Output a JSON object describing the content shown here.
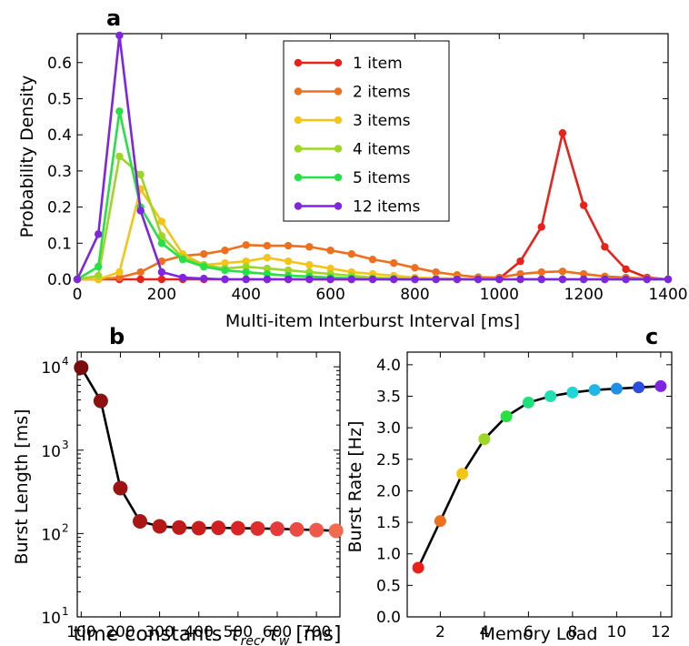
{
  "chart_data": [
    {
      "panel": "a",
      "type": "line",
      "xlabel": "Multi-item Interburst Interval [ms]",
      "ylabel": "Probability Density",
      "xlim": [
        0,
        1400
      ],
      "ylim": [
        0,
        0.68
      ],
      "xticks": [
        0,
        200,
        400,
        600,
        800,
        1000,
        1200,
        1400
      ],
      "yticks": [
        0.0,
        0.1,
        0.2,
        0.3,
        0.4,
        0.5,
        0.6
      ],
      "legend_position": "top-center",
      "x": [
        0,
        50,
        100,
        150,
        200,
        250,
        300,
        350,
        400,
        450,
        500,
        550,
        600,
        650,
        700,
        750,
        800,
        850,
        900,
        950,
        1000,
        1050,
        1100,
        1150,
        1200,
        1250,
        1300,
        1350,
        1400
      ],
      "series": [
        {
          "name": "1 item",
          "color": "#e8221a",
          "values": [
            0,
            0,
            0,
            0,
            0,
            0,
            0,
            0,
            0,
            0,
            0,
            0,
            0,
            0,
            0,
            0,
            0,
            0,
            0,
            0,
            0.002,
            0.05,
            0.145,
            0.405,
            0.205,
            0.09,
            0.028,
            0.005,
            0
          ]
        },
        {
          "name": "2 items",
          "color": "#ee6f1e",
          "values": [
            0,
            0,
            0.005,
            0.02,
            0.05,
            0.065,
            0.07,
            0.08,
            0.095,
            0.093,
            0.093,
            0.09,
            0.08,
            0.07,
            0.055,
            0.045,
            0.032,
            0.02,
            0.012,
            0.006,
            0.005,
            0.015,
            0.02,
            0.022,
            0.015,
            0.008,
            0.005,
            0.002,
            0
          ]
        },
        {
          "name": "3 items",
          "color": "#f5c419",
          "values": [
            0,
            0,
            0.02,
            0.25,
            0.16,
            0.07,
            0.04,
            0.045,
            0.05,
            0.06,
            0.05,
            0.04,
            0.03,
            0.02,
            0.015,
            0.01,
            0.005,
            0.003,
            0.002,
            0,
            0,
            0,
            0,
            0,
            0,
            0,
            0,
            0,
            0
          ]
        },
        {
          "name": "4 items",
          "color": "#9ed628",
          "values": [
            0,
            0.01,
            0.34,
            0.29,
            0.12,
            0.06,
            0.04,
            0.03,
            0.035,
            0.03,
            0.025,
            0.02,
            0.015,
            0.01,
            0.005,
            0.003,
            0,
            0,
            0,
            0,
            0,
            0,
            0,
            0,
            0,
            0,
            0,
            0,
            0
          ]
        },
        {
          "name": "5 items",
          "color": "#27e044",
          "values": [
            0,
            0.035,
            0.465,
            0.2,
            0.1,
            0.055,
            0.035,
            0.025,
            0.02,
            0.015,
            0.01,
            0.008,
            0.005,
            0.003,
            0,
            0,
            0,
            0,
            0,
            0,
            0,
            0,
            0,
            0,
            0,
            0,
            0,
            0,
            0
          ]
        },
        {
          "name": "12 items",
          "color": "#7f24e0",
          "values": [
            0,
            0.125,
            0.675,
            0.19,
            0.02,
            0.005,
            0.002,
            0,
            0,
            0,
            0,
            0,
            0,
            0,
            0,
            0,
            0,
            0,
            0,
            0,
            0,
            0,
            0,
            0,
            0,
            0,
            0,
            0,
            0
          ]
        }
      ]
    },
    {
      "panel": "b",
      "type": "scatter-line",
      "xlabel": "time constants",
      "xlabel_math": [
        "τ",
        "rec",
        ",τ",
        "w",
        " [ms]"
      ],
      "ylabel": "Burst Length [ms]",
      "yscale": "log",
      "xlim": [
        90,
        760
      ],
      "ylim": [
        10,
        15000
      ],
      "xticks": [
        100,
        200,
        300,
        400,
        500,
        600,
        700
      ],
      "yticks": [
        {
          "value": 10,
          "base": "10",
          "exp": "1"
        },
        {
          "value": 100,
          "base": "10",
          "exp": "2"
        },
        {
          "value": 1000,
          "base": "10",
          "exp": "3"
        },
        {
          "value": 10000,
          "base": "10",
          "exp": "4"
        }
      ],
      "x": [
        100,
        150,
        200,
        250,
        300,
        350,
        400,
        450,
        500,
        550,
        600,
        650,
        700,
        750
      ],
      "y": [
        9800,
        3900,
        350,
        140,
        122,
        118,
        116,
        117,
        116,
        115,
        114,
        112,
        110,
        108
      ],
      "point_colors": [
        "#7a0c0c",
        "#8d1111",
        "#9c1313",
        "#a91616",
        "#b51818",
        "#bf1a1a",
        "#c91c1c",
        "#d21f1f",
        "#da2424",
        "#e12c2c",
        "#e63a3a",
        "#ec4a42",
        "#f0584a",
        "#f26a50"
      ]
    },
    {
      "panel": "c",
      "type": "scatter-line",
      "xlabel": "Memory Load",
      "ylabel": "Burst Rate [Hz]",
      "xlim": [
        0.5,
        12.5
      ],
      "ylim": [
        0.0,
        4.2
      ],
      "xticks": [
        2,
        4,
        6,
        8,
        10,
        12
      ],
      "yticks": [
        0.0,
        0.5,
        1.0,
        1.5,
        2.0,
        2.5,
        3.0,
        3.5,
        4.0
      ],
      "x": [
        1,
        2,
        3,
        4,
        5,
        6,
        7,
        8,
        9,
        10,
        11,
        12
      ],
      "y": [
        0.78,
        1.52,
        2.27,
        2.82,
        3.18,
        3.4,
        3.5,
        3.56,
        3.6,
        3.62,
        3.64,
        3.66
      ],
      "point_colors": [
        "#e8221a",
        "#ee6f1e",
        "#f5c419",
        "#9ed628",
        "#27e044",
        "#1fe07a",
        "#1ee0b0",
        "#1ed8d8",
        "#1eb8e8",
        "#1e90e8",
        "#2a4fe0",
        "#7f24e0"
      ]
    }
  ]
}
